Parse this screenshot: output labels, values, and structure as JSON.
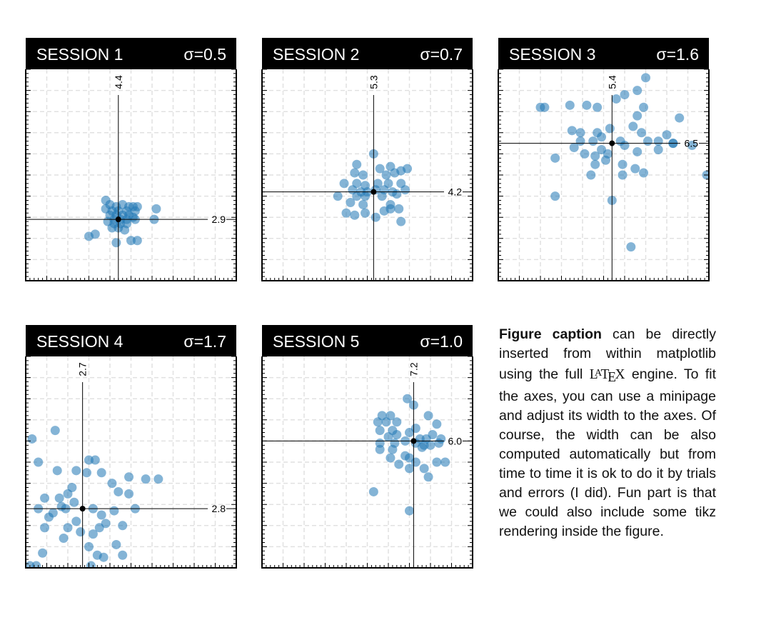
{
  "chart_data": [
    {
      "type": "scatter",
      "title": "SESSION  1",
      "sigma_label": "σ=0.5",
      "xlim": [
        0,
        10
      ],
      "ylim": [
        0,
        10
      ],
      "mean": {
        "x": 4.4,
        "y": 2.9
      },
      "mean_x_label": "4.4",
      "mean_y_label": "2.9",
      "grid": true,
      "points": [
        [
          3.8,
          3.8
        ],
        [
          4.0,
          3.6
        ],
        [
          4.3,
          3.5
        ],
        [
          4.6,
          3.6
        ],
        [
          4.9,
          3.5
        ],
        [
          5.1,
          3.5
        ],
        [
          5.3,
          3.5
        ],
        [
          6.2,
          3.4
        ],
        [
          3.8,
          3.4
        ],
        [
          4.1,
          3.3
        ],
        [
          4.4,
          3.3
        ],
        [
          4.8,
          3.3
        ],
        [
          5.2,
          3.3
        ],
        [
          4.0,
          3.1
        ],
        [
          4.3,
          3.1
        ],
        [
          4.6,
          3.1
        ],
        [
          4.9,
          3.1
        ],
        [
          5.1,
          3.0
        ],
        [
          4.2,
          2.9
        ],
        [
          4.5,
          2.9
        ],
        [
          4.8,
          2.9
        ],
        [
          5.2,
          2.9
        ],
        [
          6.1,
          2.9
        ],
        [
          3.9,
          2.8
        ],
        [
          4.2,
          2.7
        ],
        [
          4.5,
          2.7
        ],
        [
          4.8,
          2.7
        ],
        [
          4.1,
          2.5
        ],
        [
          4.4,
          2.5
        ],
        [
          4.7,
          2.4
        ],
        [
          3.0,
          2.1
        ],
        [
          3.3,
          2.2
        ],
        [
          5.0,
          1.9
        ],
        [
          5.3,
          1.9
        ],
        [
          4.3,
          1.8
        ]
      ]
    },
    {
      "type": "scatter",
      "title": "SESSION  2",
      "sigma_label": "σ=0.7",
      "xlim": [
        0,
        10
      ],
      "ylim": [
        0,
        10
      ],
      "mean": {
        "x": 5.3,
        "y": 4.2
      },
      "mean_x_label": "5.3",
      "mean_y_label": "4.2",
      "grid": true,
      "points": [
        [
          5.3,
          6.0
        ],
        [
          4.5,
          5.5
        ],
        [
          5.6,
          5.3
        ],
        [
          6.1,
          5.4
        ],
        [
          6.6,
          5.2
        ],
        [
          4.4,
          5.1
        ],
        [
          4.8,
          5.0
        ],
        [
          5.9,
          5.0
        ],
        [
          6.3,
          5.1
        ],
        [
          6.9,
          5.3
        ],
        [
          3.9,
          4.6
        ],
        [
          4.5,
          4.6
        ],
        [
          4.9,
          4.5
        ],
        [
          5.5,
          4.6
        ],
        [
          6.0,
          4.6
        ],
        [
          6.6,
          4.6
        ],
        [
          4.3,
          4.3
        ],
        [
          4.7,
          4.2
        ],
        [
          5.0,
          4.2
        ],
        [
          5.4,
          4.3
        ],
        [
          5.8,
          4.3
        ],
        [
          6.2,
          4.2
        ],
        [
          6.8,
          4.3
        ],
        [
          3.6,
          4.0
        ],
        [
          4.5,
          4.0
        ],
        [
          4.9,
          4.0
        ],
        [
          5.7,
          4.0
        ],
        [
          6.4,
          4.1
        ],
        [
          4.2,
          3.7
        ],
        [
          4.8,
          3.6
        ],
        [
          6.1,
          3.6
        ],
        [
          4.0,
          3.2
        ],
        [
          4.4,
          3.1
        ],
        [
          4.9,
          3.2
        ],
        [
          5.4,
          3.0
        ],
        [
          5.8,
          3.3
        ],
        [
          6.1,
          3.4
        ],
        [
          6.5,
          3.4
        ],
        [
          6.6,
          2.8
        ]
      ]
    },
    {
      "type": "scatter",
      "title": "SESSION  3",
      "sigma_label": "σ=1.6",
      "xlim": [
        0,
        10
      ],
      "ylim": [
        0,
        10
      ],
      "mean": {
        "x": 5.4,
        "y": 6.5
      },
      "mean_x_label": "5.4",
      "mean_y_label": "6.5",
      "grid": true,
      "points": [
        [
          7.0,
          9.6
        ],
        [
          6.0,
          8.8
        ],
        [
          6.6,
          9.0
        ],
        [
          5.6,
          8.6
        ],
        [
          2.0,
          8.2
        ],
        [
          2.2,
          8.2
        ],
        [
          3.4,
          8.3
        ],
        [
          4.2,
          8.3
        ],
        [
          4.7,
          8.2
        ],
        [
          6.9,
          8.2
        ],
        [
          6.6,
          7.8
        ],
        [
          8.6,
          7.7
        ],
        [
          3.5,
          7.1
        ],
        [
          3.9,
          7.0
        ],
        [
          4.7,
          7.0
        ],
        [
          5.3,
          7.2
        ],
        [
          6.4,
          7.3
        ],
        [
          6.8,
          7.0
        ],
        [
          4.9,
          6.8
        ],
        [
          8.0,
          6.9
        ],
        [
          3.9,
          6.6
        ],
        [
          4.5,
          6.6
        ],
        [
          5.8,
          6.6
        ],
        [
          7.1,
          6.6
        ],
        [
          7.6,
          6.6
        ],
        [
          8.3,
          6.5
        ],
        [
          9.2,
          6.4
        ],
        [
          3.6,
          6.3
        ],
        [
          4.9,
          6.2
        ],
        [
          6.0,
          6.4
        ],
        [
          6.6,
          6.1
        ],
        [
          7.6,
          6.2
        ],
        [
          4.1,
          6.0
        ],
        [
          4.6,
          5.9
        ],
        [
          5.2,
          6.0
        ],
        [
          8.3,
          6.5
        ],
        [
          2.7,
          5.8
        ],
        [
          4.6,
          5.5
        ],
        [
          5.1,
          5.7
        ],
        [
          5.9,
          5.5
        ],
        [
          6.5,
          5.3
        ],
        [
          6.9,
          5.1
        ],
        [
          4.4,
          5.0
        ],
        [
          5.9,
          5.0
        ],
        [
          9.9,
          5.0
        ],
        [
          2.7,
          4.0
        ],
        [
          5.4,
          3.8
        ],
        [
          6.3,
          1.6
        ]
      ]
    },
    {
      "type": "scatter",
      "title": "SESSION  4",
      "sigma_label": "σ=1.7",
      "xlim": [
        0,
        10
      ],
      "ylim": [
        0,
        10
      ],
      "mean": {
        "x": 2.7,
        "y": 2.8
      },
      "mean_x_label": "2.7",
      "mean_y_label": "2.8",
      "grid": true,
      "points": [
        [
          0.3,
          6.1
        ],
        [
          1.4,
          6.5
        ],
        [
          0.6,
          5.0
        ],
        [
          3.0,
          5.1
        ],
        [
          3.3,
          5.1
        ],
        [
          1.5,
          4.6
        ],
        [
          2.4,
          4.6
        ],
        [
          2.9,
          4.5
        ],
        [
          3.6,
          4.5
        ],
        [
          4.9,
          4.3
        ],
        [
          5.7,
          4.2
        ],
        [
          6.3,
          4.2
        ],
        [
          4.1,
          4.0
        ],
        [
          2.2,
          3.8
        ],
        [
          4.4,
          3.6
        ],
        [
          2.0,
          3.5
        ],
        [
          2.3,
          3.1
        ],
        [
          0.9,
          3.3
        ],
        [
          1.6,
          3.3
        ],
        [
          4.9,
          3.5
        ],
        [
          0.6,
          2.8
        ],
        [
          1.7,
          2.9
        ],
        [
          5.2,
          2.8
        ],
        [
          1.3,
          2.6
        ],
        [
          1.9,
          2.8
        ],
        [
          3.2,
          2.8
        ],
        [
          1.1,
          2.4
        ],
        [
          3.6,
          2.5
        ],
        [
          4.2,
          2.7
        ],
        [
          2.4,
          2.2
        ],
        [
          3.8,
          2.1
        ],
        [
          0.9,
          1.9
        ],
        [
          2.0,
          1.9
        ],
        [
          3.5,
          1.9
        ],
        [
          4.6,
          2.0
        ],
        [
          3.2,
          1.6
        ],
        [
          1.8,
          1.4
        ],
        [
          2.6,
          1.7
        ],
        [
          4.3,
          1.1
        ],
        [
          3.0,
          1.0
        ],
        [
          0.8,
          0.7
        ],
        [
          3.4,
          0.6
        ],
        [
          4.6,
          0.6
        ],
        [
          3.7,
          0.5
        ],
        [
          0.2,
          0.1
        ],
        [
          0.5,
          0.1
        ],
        [
          3.1,
          0.1
        ]
      ]
    },
    {
      "type": "scatter",
      "title": "SESSION  5",
      "sigma_label": "σ=1.0",
      "xlim": [
        0,
        10
      ],
      "ylim": [
        0,
        10
      ],
      "mean": {
        "x": 7.2,
        "y": 6.0
      },
      "mean_x_label": "7.2",
      "mean_y_label": "6.0",
      "grid": true,
      "points": [
        [
          6.9,
          8.0
        ],
        [
          7.2,
          7.7
        ],
        [
          5.7,
          7.2
        ],
        [
          6.1,
          7.2
        ],
        [
          7.9,
          7.2
        ],
        [
          5.5,
          6.9
        ],
        [
          5.9,
          6.9
        ],
        [
          6.4,
          6.9
        ],
        [
          8.3,
          6.8
        ],
        [
          5.6,
          6.5
        ],
        [
          6.2,
          6.5
        ],
        [
          7.3,
          6.6
        ],
        [
          6.0,
          6.2
        ],
        [
          6.4,
          6.3
        ],
        [
          7.0,
          6.4
        ],
        [
          7.5,
          6.1
        ],
        [
          7.8,
          6.1
        ],
        [
          8.1,
          6.3
        ],
        [
          5.6,
          5.9
        ],
        [
          6.3,
          5.9
        ],
        [
          6.8,
          6.0
        ],
        [
          7.3,
          5.9
        ],
        [
          7.7,
          5.8
        ],
        [
          8.0,
          5.8
        ],
        [
          8.5,
          6.1
        ],
        [
          5.6,
          5.6
        ],
        [
          6.2,
          5.6
        ],
        [
          7.6,
          5.7
        ],
        [
          8.4,
          5.9
        ],
        [
          6.8,
          5.3
        ],
        [
          7.0,
          5.2
        ],
        [
          7.3,
          5.0
        ],
        [
          6.1,
          5.2
        ],
        [
          8.3,
          5.0
        ],
        [
          6.5,
          4.9
        ],
        [
          8.7,
          5.0
        ],
        [
          7.7,
          4.7
        ],
        [
          7.0,
          4.7
        ],
        [
          7.9,
          4.3
        ],
        [
          5.3,
          3.6
        ],
        [
          7.0,
          2.7
        ]
      ]
    }
  ],
  "caption": {
    "bold_lead": "Figure caption",
    "text_before_latex": " can be directly inserted from within matplotlib using the full ",
    "latex_L": "L",
    "latex_A": "A",
    "latex_T": "T",
    "latex_E": "E",
    "latex_X": "X",
    "text_after_latex": " engine.  To fit the axes, you can use a mini­page and adjust its width to the axes.  Of course, the width can be also computed auto­matically but from time to time it is ok to do it by trials and er­rors (I did). Fun part is that we could also include some tikz rendering inside the figure."
  }
}
